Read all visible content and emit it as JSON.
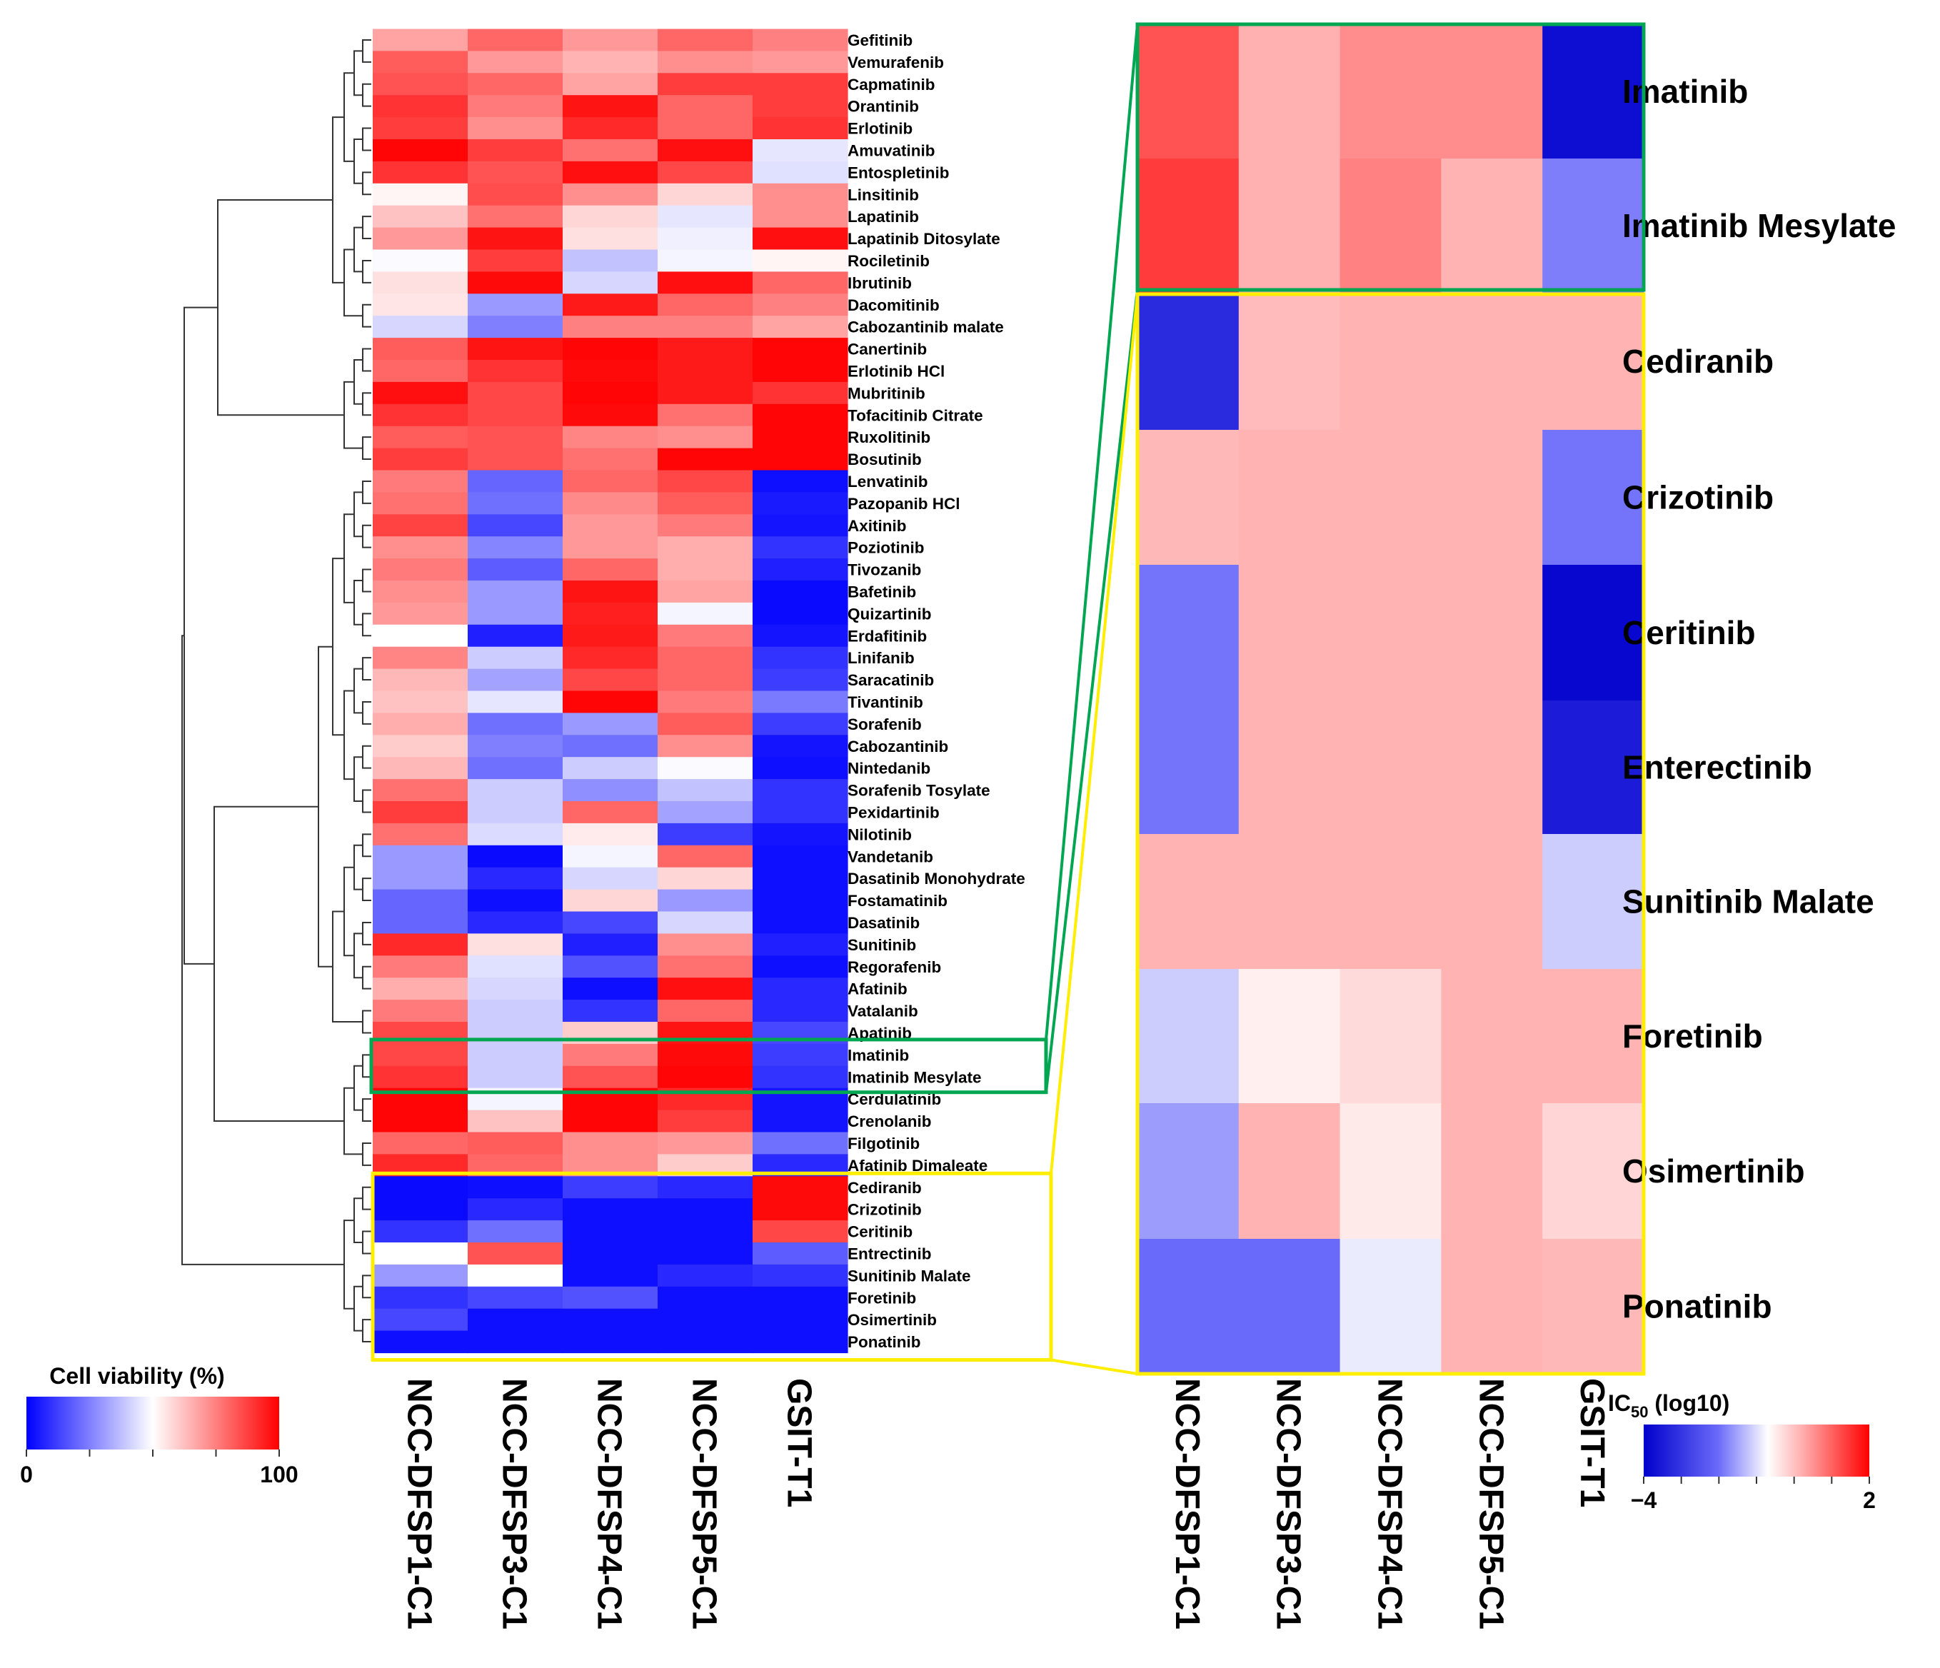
{
  "chart_data": [
    {
      "type": "heatmap",
      "panel": "left",
      "columns": [
        "NCC-DFSP1-C1",
        "NCC-DFSP3-C1",
        "NCC-DFSP4-C1",
        "NCC-DFSP5-C1",
        "GSIT-T1"
      ],
      "rows": [
        "Gefitinib",
        "Vemurafenib",
        "Capmatinib",
        "Orantinib",
        "Erlotinib",
        "Amuvatinib",
        "Entospletinib",
        "Linsitinib",
        "Lapatinib",
        "Lapatinib Ditosylate",
        "Rociletinib",
        "Ibrutinib",
        "Dacomitinib",
        "Cabozantinib malate",
        "Canertinib",
        "Erlotinib HCl",
        "Mubritinib",
        "Tofacitinib Citrate",
        "Ruxolitinib",
        "Bosutinib",
        "Lenvatinib",
        "Pazopanib HCl",
        "Axitinib",
        "Poziotinib",
        "Tivozanib",
        "Bafetinib",
        "Quizartinib",
        "Erdafitinib",
        "Linifanib",
        "Saracatinib",
        "Tivantinib",
        "Sorafenib",
        "Cabozantinib",
        "Nintedanib",
        "Sorafenib Tosylate",
        "Pexidartinib",
        "Nilotinib",
        "Vandetanib",
        "Dasatinib Monohydrate",
        "Fostamatinib",
        "Dasatinib",
        "Sunitinib",
        "Regorafenib",
        "Afatinib",
        "Vatalanib",
        "Apatinib",
        "Imatinib",
        "Imatinib Mesylate",
        "Cerdulatinib",
        "Crenolanib",
        "Filgotinib",
        "Afatinib Dimaleate",
        "Cediranib",
        "Crizotinib",
        "Ceritinib",
        "Entrectinib",
        "Sunitinib Malate",
        "Foretinib",
        "Osimertinib",
        "Ponatinib"
      ],
      "values": [
        [
          68,
          80,
          70,
          80,
          75
        ],
        [
          82,
          70,
          65,
          72,
          70
        ],
        [
          84,
          80,
          68,
          88,
          88
        ],
        [
          90,
          76,
          96,
          80,
          88
        ],
        [
          88,
          72,
          92,
          80,
          90
        ],
        [
          99,
          88,
          78,
          97,
          45
        ],
        [
          90,
          84,
          97,
          86,
          44
        ],
        [
          52,
          85,
          72,
          58,
          72
        ],
        [
          62,
          78,
          58,
          45,
          72
        ],
        [
          70,
          96,
          56,
          47,
          97
        ],
        [
          49,
          88,
          38,
          48,
          52
        ],
        [
          56,
          98,
          42,
          97,
          80
        ],
        [
          55,
          30,
          95,
          80,
          75
        ],
        [
          42,
          25,
          75,
          75,
          68
        ],
        [
          82,
          96,
          99,
          95,
          99
        ],
        [
          80,
          90,
          98,
          95,
          99
        ],
        [
          97,
          86,
          99,
          95,
          90
        ],
        [
          90,
          86,
          98,
          78,
          99
        ],
        [
          82,
          84,
          74,
          72,
          99
        ],
        [
          88,
          84,
          78,
          99,
          99
        ],
        [
          76,
          20,
          80,
          86,
          3
        ],
        [
          78,
          22,
          73,
          82,
          5
        ],
        [
          87,
          14,
          70,
          76,
          4
        ],
        [
          72,
          26,
          70,
          66,
          10
        ],
        [
          76,
          18,
          80,
          66,
          6
        ],
        [
          72,
          30,
          96,
          68,
          2
        ],
        [
          70,
          30,
          94,
          48,
          2
        ],
        [
          50,
          6,
          95,
          76,
          4
        ],
        [
          74,
          40,
          92,
          80,
          10
        ],
        [
          64,
          32,
          86,
          80,
          12
        ],
        [
          62,
          45,
          99,
          76,
          24
        ],
        [
          66,
          22,
          30,
          82,
          12
        ],
        [
          60,
          25,
          22,
          72,
          4
        ],
        [
          64,
          22,
          40,
          49,
          3
        ],
        [
          78,
          40,
          28,
          38,
          10
        ],
        [
          88,
          40,
          80,
          32,
          10
        ],
        [
          78,
          43,
          54,
          12,
          4
        ],
        [
          30,
          2,
          48,
          80,
          3
        ],
        [
          30,
          8,
          42,
          58,
          3
        ],
        [
          20,
          3,
          58,
          30,
          3
        ],
        [
          20,
          8,
          14,
          42,
          3
        ],
        [
          92,
          56,
          6,
          72,
          6
        ],
        [
          76,
          44,
          16,
          78,
          3
        ],
        [
          66,
          42,
          3,
          97,
          8
        ],
        [
          76,
          40,
          10,
          80,
          8
        ],
        [
          86,
          40,
          60,
          96,
          14
        ],
        [
          86,
          40,
          76,
          98,
          12
        ],
        [
          90,
          40,
          84,
          99,
          10
        ],
        [
          99,
          48,
          99,
          92,
          4
        ],
        [
          99,
          62,
          99,
          88,
          4
        ],
        [
          80,
          82,
          72,
          70,
          22
        ],
        [
          92,
          80,
          72,
          60,
          8
        ],
        [
          2,
          3,
          12,
          8,
          98
        ],
        [
          2,
          8,
          3,
          3,
          98
        ],
        [
          10,
          22,
          3,
          3,
          86
        ],
        [
          50,
          84,
          3,
          3,
          18
        ],
        [
          30,
          50,
          3,
          8,
          10
        ],
        [
          10,
          14,
          16,
          3,
          3
        ],
        [
          14,
          3,
          3,
          3,
          3
        ],
        [
          3,
          3,
          3,
          3,
          3
        ]
      ],
      "value_range": [
        0,
        100
      ],
      "colorbar": {
        "title": "Cell viability (%)",
        "min_label": "0",
        "max_label": "100",
        "colors": [
          "#0000ff",
          "#ffffff",
          "#ff0000"
        ]
      },
      "highlight_boxes": [
        {
          "rows": [
            "Imatinib",
            "Imatinib Mesylate"
          ],
          "color": "#00a651"
        },
        {
          "rows": [
            "Cediranib",
            "Crizotinib",
            "Ceritinib",
            "Entrectinib",
            "Sunitinib Malate",
            "Foretinib",
            "Osimertinib",
            "Ponatinib"
          ],
          "color": "#ffee00"
        }
      ]
    },
    {
      "type": "heatmap",
      "panel": "right",
      "columns": [
        "NCC-DFSP1-C1",
        "NCC-DFSP3-C1",
        "NCC-DFSP4-C1",
        "NCC-DFSP5-C1",
        "GSIT-T1"
      ],
      "groups": [
        {
          "color": "#00a651",
          "rows": [
            "Imatinib",
            "Imatinib Mesylate"
          ]
        },
        {
          "color": "#ffee00",
          "rows": [
            "Cediranib",
            "Crizotinib",
            "Ceritinib",
            "Enterectinib",
            "Sunitinib Malate",
            "Foretinib",
            "Osimertinib",
            "Ponatinib"
          ]
        }
      ],
      "values": [
        [
          1.3,
          0.5,
          0.8,
          0.8,
          -3.8
        ],
        [
          1.5,
          0.5,
          0.9,
          0.45,
          -2.3
        ],
        [
          -3.4,
          0.3,
          0.45,
          0.45,
          0.45
        ],
        [
          0.35,
          0.45,
          0.45,
          0.45,
          -2.4
        ],
        [
          -2.4,
          0.45,
          0.45,
          0.45,
          -3.9
        ],
        [
          -2.4,
          0.45,
          0.45,
          0.45,
          -3.6
        ],
        [
          0.45,
          0.45,
          0.45,
          0.45,
          -1.5
        ],
        [
          -1.5,
          -0.7,
          -0.3,
          0.45,
          0.45
        ],
        [
          -2.0,
          0.45,
          -0.6,
          0.45,
          -0.2
        ],
        [
          -2.5,
          -2.5,
          -1.2,
          0.45,
          0.35
        ]
      ],
      "value_range": [
        -4,
        2
      ],
      "colorbar": {
        "title_main": "IC",
        "title_sub": "50",
        "title_rest": " (log10)",
        "min_label": "−4",
        "max_label": "2",
        "colors": [
          "#0000cc",
          "#6a6afa",
          "#ffffff",
          "#ffb0b0",
          "#ff0000"
        ]
      }
    }
  ]
}
